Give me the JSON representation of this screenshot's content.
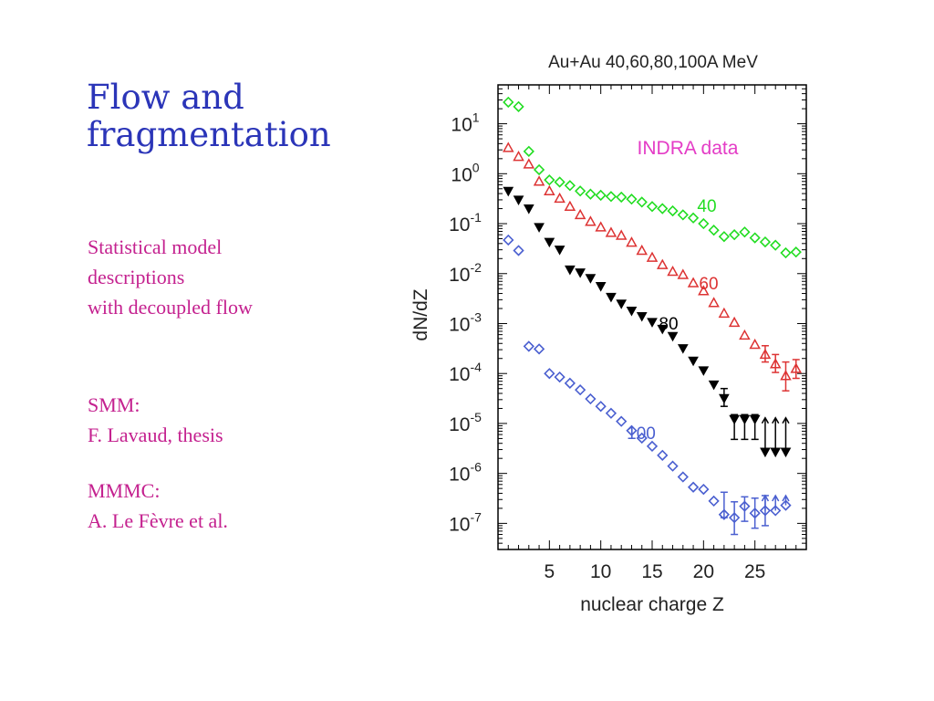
{
  "slide": {
    "title_lines": [
      "Flow and",
      "fragmentation"
    ],
    "notes": [
      {
        "lines": [
          "Statistical model",
          "descriptions",
          "with decoupled flow"
        ]
      },
      {
        "lines": [
          "SMM:",
          "F. Lavaud, thesis"
        ]
      },
      {
        "lines": [
          "MMMC:",
          "A. Le Fèvre et al."
        ]
      }
    ],
    "colors": {
      "title": "#2b35b8",
      "notes": "#c4218f"
    }
  },
  "chart_data": {
    "type": "scatter",
    "title": "Au+Au 40,60,80,100A MeV",
    "xlabel": "nuclear charge Z",
    "ylabel": "dN/dZ",
    "xlim": [
      0,
      30
    ],
    "ylim": [
      3e-08,
      60
    ],
    "yscale": "log",
    "xticks": [
      5,
      10,
      15,
      20,
      25
    ],
    "yticks": [
      {
        "base": "10",
        "exp": "1"
      },
      {
        "base": "10",
        "exp": "0"
      },
      {
        "base": "10",
        "exp": "-1"
      },
      {
        "base": "10",
        "exp": "-2"
      },
      {
        "base": "10",
        "exp": "-3"
      },
      {
        "base": "10",
        "exp": "-4"
      },
      {
        "base": "10",
        "exp": "-5"
      },
      {
        "base": "10",
        "exp": "-6"
      },
      {
        "base": "10",
        "exp": "-7"
      }
    ],
    "annotation": {
      "text": "INDRA data",
      "color": "#e43cc6"
    },
    "series": [
      {
        "name": "40",
        "color": "#22dd22",
        "marker": "diamond-open",
        "points": [
          [
            1,
            27
          ],
          [
            2,
            22
          ],
          [
            3,
            2.8
          ],
          [
            4,
            1.2
          ],
          [
            5,
            0.75
          ],
          [
            6,
            0.68
          ],
          [
            7,
            0.58
          ],
          [
            8,
            0.45
          ],
          [
            9,
            0.39
          ],
          [
            10,
            0.37
          ],
          [
            11,
            0.35
          ],
          [
            12,
            0.34
          ],
          [
            13,
            0.31
          ],
          [
            14,
            0.27
          ],
          [
            15,
            0.22
          ],
          [
            16,
            0.2
          ],
          [
            17,
            0.18
          ],
          [
            18,
            0.15
          ],
          [
            19,
            0.13
          ],
          [
            20,
            0.1
          ],
          [
            21,
            0.074
          ],
          [
            22,
            0.055
          ],
          [
            23,
            0.06
          ],
          [
            24,
            0.068
          ],
          [
            25,
            0.052
          ],
          [
            26,
            0.043
          ],
          [
            27,
            0.037
          ],
          [
            28,
            0.026
          ],
          [
            29,
            0.027
          ]
        ]
      },
      {
        "name": "60",
        "color": "#dd3333",
        "marker": "triangle-up-open",
        "points": [
          [
            1,
            3.3
          ],
          [
            2,
            2.2
          ],
          [
            3,
            1.55
          ],
          [
            4,
            0.7
          ],
          [
            5,
            0.45
          ],
          [
            6,
            0.32
          ],
          [
            7,
            0.22
          ],
          [
            8,
            0.15
          ],
          [
            9,
            0.11
          ],
          [
            10,
            0.085
          ],
          [
            11,
            0.066
          ],
          [
            12,
            0.058
          ],
          [
            13,
            0.042
          ],
          [
            14,
            0.029
          ],
          [
            15,
            0.021
          ],
          [
            16,
            0.015
          ],
          [
            17,
            0.011
          ],
          [
            18,
            0.0095
          ],
          [
            19,
            0.0065
          ],
          [
            20,
            0.0045
          ],
          [
            21,
            0.0026
          ],
          [
            22,
            0.0016
          ],
          [
            23,
            0.00105
          ],
          [
            24,
            0.00058
          ],
          [
            25,
            0.00038
          ],
          [
            26,
            0.00024
          ],
          [
            27,
            0.000155
          ],
          [
            28,
            9e-05
          ],
          [
            29,
            0.000125
          ]
        ],
        "errors": [
          [
            26,
            0.00017,
            0.00036
          ],
          [
            27,
            0.000105,
            0.00024
          ],
          [
            28,
            4.5e-05,
            0.00017
          ],
          [
            29,
            8e-05,
            0.00019
          ]
        ]
      },
      {
        "name": "80",
        "color": "#000000",
        "marker": "triangle-down-filled",
        "points": [
          [
            1,
            0.45
          ],
          [
            2,
            0.3
          ],
          [
            3,
            0.2
          ],
          [
            4,
            0.085
          ],
          [
            5,
            0.043
          ],
          [
            6,
            0.03
          ],
          [
            7,
            0.012
          ],
          [
            8,
            0.0105
          ],
          [
            9,
            0.0081
          ],
          [
            10,
            0.0056
          ],
          [
            11,
            0.0034
          ],
          [
            12,
            0.0025
          ],
          [
            13,
            0.0018
          ],
          [
            14,
            0.0014
          ],
          [
            15,
            0.00107
          ],
          [
            16,
            0.00078
          ],
          [
            17,
            0.00056
          ],
          [
            18,
            0.00032
          ],
          [
            19,
            0.00018
          ],
          [
            20,
            0.000115
          ],
          [
            21,
            6e-05
          ],
          [
            22,
            3.2e-05
          ],
          [
            23,
            1.22e-05
          ],
          [
            24,
            1.22e-05
          ],
          [
            25,
            1.22e-05
          ],
          [
            26,
            2.7e-06
          ],
          [
            27,
            2.7e-06
          ],
          [
            28,
            2.7e-06
          ]
        ],
        "errors": [
          [
            22,
            2.2e-05,
            5e-05
          ],
          [
            23,
            4.8e-06,
            1.5e-05
          ],
          [
            24,
            4.8e-06,
            1.5e-05
          ],
          [
            25,
            4.8e-06,
            1.5e-05
          ]
        ],
        "upper_arrows": [
          [
            26,
            1.3e-05
          ],
          [
            27,
            1.3e-05
          ],
          [
            28,
            1.3e-05
          ]
        ]
      },
      {
        "name": "100",
        "color": "#4a5fd0",
        "marker": "diamond-open",
        "points": [
          [
            1,
            0.047
          ],
          [
            2,
            0.029
          ],
          [
            3,
            0.00035
          ],
          [
            4,
            0.00031
          ],
          [
            5,
            0.0001
          ],
          [
            6,
            8.5e-05
          ],
          [
            7,
            6.4e-05
          ],
          [
            8,
            4.7e-05
          ],
          [
            9,
            3.1e-05
          ],
          [
            10,
            2.2e-05
          ],
          [
            11,
            1.6e-05
          ],
          [
            12,
            1.1e-05
          ],
          [
            13,
            7.2e-06
          ],
          [
            14,
            5.1e-06
          ],
          [
            15,
            3.5e-06
          ],
          [
            16,
            2.3e-06
          ],
          [
            17,
            1.4e-06
          ],
          [
            18,
            8.5e-07
          ],
          [
            19,
            5.3e-07
          ],
          [
            20,
            4.8e-07
          ],
          [
            21,
            2.8e-07
          ],
          [
            22,
            1.5e-07
          ],
          [
            23,
            1.3e-07
          ],
          [
            24,
            2.2e-07
          ],
          [
            25,
            1.6e-07
          ],
          [
            26,
            1.8e-07
          ],
          [
            27,
            1.8e-07
          ],
          [
            28,
            2.3e-07
          ]
        ],
        "errors": [
          [
            22,
            1.3e-07,
            4.2e-07
          ],
          [
            23,
            6e-08,
            2.7e-07
          ],
          [
            24,
            1.1e-07,
            3.4e-07
          ],
          [
            25,
            8e-08,
            3.2e-07
          ],
          [
            26,
            9e-08,
            3.6e-07
          ]
        ],
        "upper_arrows": [
          [
            26,
            3.6e-07
          ],
          [
            27,
            3.6e-07
          ],
          [
            28,
            3.6e-07
          ]
        ]
      }
    ]
  }
}
